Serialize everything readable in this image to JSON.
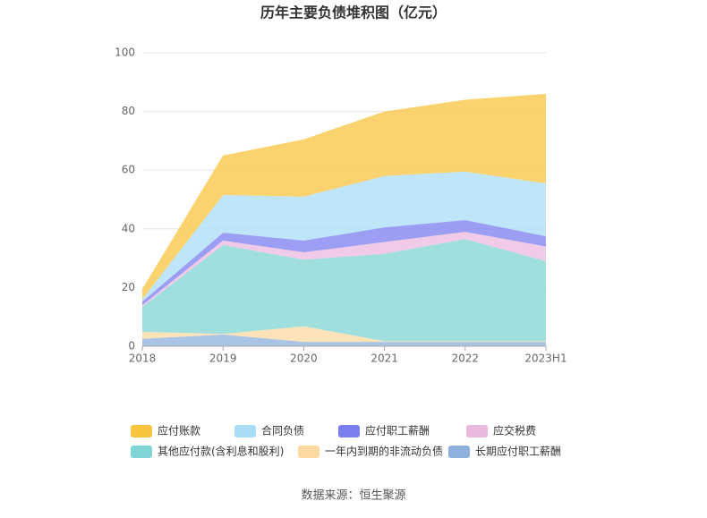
{
  "chart_data": {
    "type": "stacked_area",
    "title": "历年主要负债堆积图（亿元）",
    "categories": [
      "2018",
      "2019",
      "2020",
      "2021",
      "2022",
      "2023H1"
    ],
    "series": [
      {
        "name": "长期应付职工薪酬",
        "color": "#8eb0dd",
        "values": [
          2.5,
          4,
          1.5,
          1.5,
          1.5,
          1.5
        ]
      },
      {
        "name": "一年内到期的非流动负债",
        "color": "#fdd8a0",
        "values": [
          2.4,
          0.2,
          5.3,
          0.2,
          0.2,
          0.2
        ]
      },
      {
        "name": "其他应付款(含利息和股利)",
        "color": "#7fd6d4",
        "values": [
          8.5,
          30.3,
          22.7,
          29.8,
          34.8,
          27.3
        ]
      },
      {
        "name": "应交税费",
        "color": "#ebb8de",
        "values": [
          0.6,
          1.5,
          2.5,
          4,
          2.5,
          5
        ]
      },
      {
        "name": "应付职工薪酬",
        "color": "#7b7ef0",
        "values": [
          1.2,
          2.7,
          4,
          5,
          4,
          3.5
        ]
      },
      {
        "name": "合同负债",
        "color": "#a8dcf7",
        "values": [
          0.8,
          12.8,
          15,
          17.5,
          16.5,
          18
        ]
      },
      {
        "name": "应付账款",
        "color": "#f8c43e",
        "values": [
          3.5,
          13.5,
          19.5,
          22,
          24.5,
          30.5
        ]
      }
    ],
    "ylim": [
      0,
      100
    ],
    "yticks": [
      0,
      20,
      40,
      60,
      80,
      100
    ],
    "grid": true,
    "source": "数据来源：恒生聚源"
  }
}
